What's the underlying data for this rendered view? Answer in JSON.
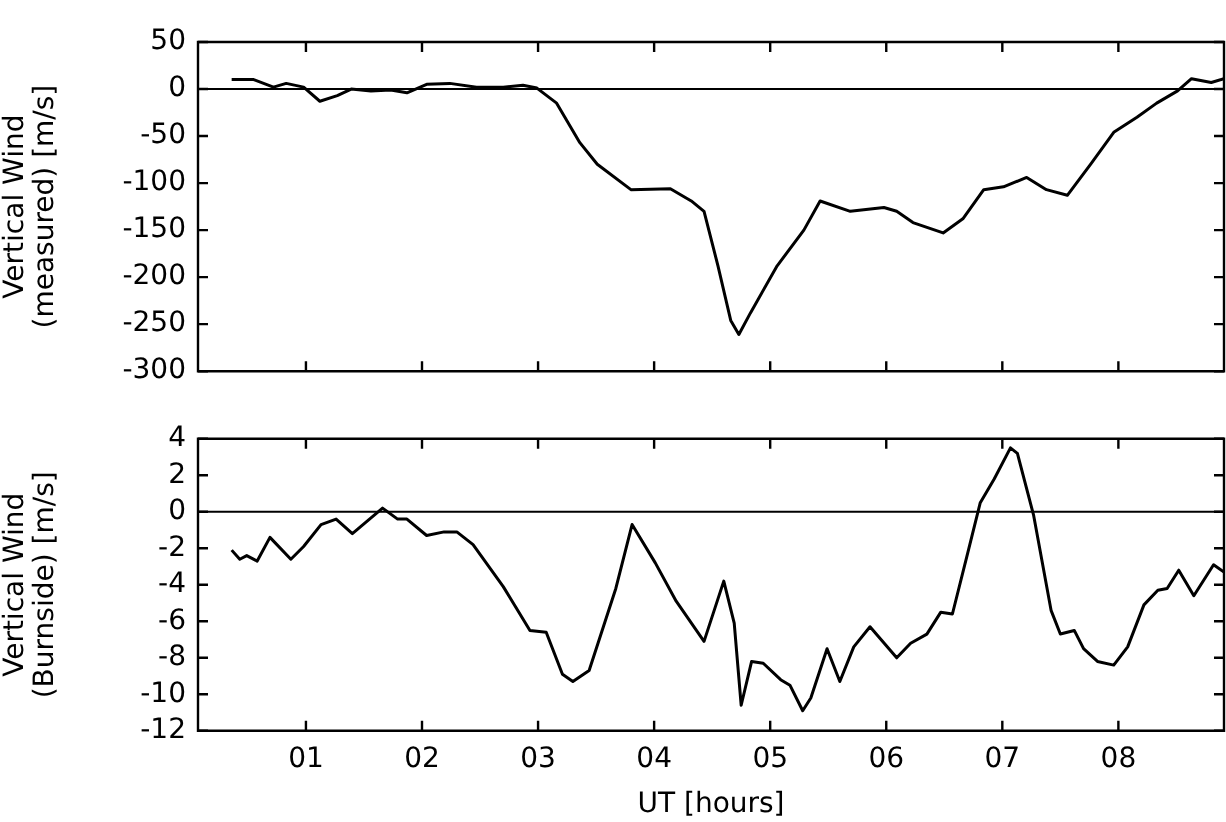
{
  "chart_data": [
    {
      "type": "line",
      "ylabel": "Vertical Wind\n(measured) [m/s]",
      "color": "#000000",
      "legend": false,
      "grid": false,
      "marker": "none",
      "line_style": "solid",
      "tick_labels": "y",
      "x": [
        0.36,
        0.55,
        0.72,
        0.83,
        0.98,
        1.12,
        1.27,
        1.39,
        1.56,
        1.73,
        1.87,
        2.04,
        2.24,
        2.47,
        2.7,
        2.87,
        2.99,
        3.16,
        3.36,
        3.51,
        3.8,
        4.14,
        4.32,
        4.43,
        4.55,
        4.66,
        4.73,
        4.83,
        5.06,
        5.29,
        5.43,
        5.69,
        5.98,
        6.09,
        6.23,
        6.49,
        6.66,
        6.84,
        7.01,
        7.21,
        7.38,
        7.56,
        7.76,
        7.96,
        8.16,
        8.33,
        8.51,
        8.63,
        8.8,
        8.91
      ],
      "values": [
        10,
        10,
        2,
        6,
        2,
        -13,
        -7,
        0,
        -2,
        -1,
        -4,
        5,
        6,
        2,
        2,
        4,
        1,
        -15,
        -57,
        -80,
        -107,
        -106,
        -119,
        -130,
        -188,
        -246,
        -261,
        -238,
        -188,
        -150,
        -119,
        -130,
        -126,
        -130,
        -142,
        -153,
        -138,
        -107,
        -104,
        -94,
        -107,
        -113,
        -80,
        -46,
        -30,
        -15,
        -2,
        11,
        7,
        11
      ],
      "xlim": [
        0.07,
        8.91
      ],
      "xticks": [
        {
          "value": 1,
          "label": null
        },
        {
          "value": 2,
          "label": null
        },
        {
          "value": 3,
          "label": null
        },
        {
          "value": 4,
          "label": null
        },
        {
          "value": 5,
          "label": null
        },
        {
          "value": 6,
          "label": null
        },
        {
          "value": 7,
          "label": null
        },
        {
          "value": 8,
          "label": null
        }
      ],
      "ylim": [
        -300,
        50
      ],
      "yticks": [
        -300,
        -250,
        -200,
        -150,
        -100,
        -50,
        0,
        50
      ],
      "ref_lines": [
        {
          "axis": "y",
          "value": 0
        }
      ]
    },
    {
      "type": "line",
      "ylabel": "Vertical Wind\n(Burnside) [m/s]",
      "xlabel": "UT [hours]",
      "color": "#000000",
      "legend": false,
      "grid": false,
      "marker": "none",
      "line_style": "solid",
      "x": [
        0.36,
        0.43,
        0.49,
        0.58,
        0.69,
        0.87,
        0.98,
        1.13,
        1.26,
        1.4,
        1.66,
        1.79,
        1.87,
        2.04,
        2.19,
        2.3,
        2.44,
        2.7,
        2.93,
        3.07,
        3.21,
        3.3,
        3.44,
        3.67,
        3.81,
        4.01,
        4.19,
        4.43,
        4.6,
        4.69,
        4.75,
        4.84,
        4.94,
        5.09,
        5.17,
        5.28,
        5.35,
        5.49,
        5.6,
        5.72,
        5.86,
        6.09,
        6.21,
        6.35,
        6.47,
        6.57,
        6.7,
        6.81,
        6.93,
        7.07,
        7.13,
        7.27,
        7.42,
        7.5,
        7.62,
        7.7,
        7.82,
        7.96,
        8.08,
        8.22,
        8.34,
        8.42,
        8.52,
        8.65,
        8.82,
        8.91
      ],
      "values": [
        -2.1,
        -2.6,
        -2.4,
        -2.7,
        -1.4,
        -2.6,
        -1.9,
        -0.7,
        -0.4,
        -1.2,
        0.2,
        -0.4,
        -0.4,
        -1.3,
        -1.1,
        -1.1,
        -1.8,
        -4.1,
        -6.5,
        -6.6,
        -8.9,
        -9.3,
        -8.7,
        -4.2,
        -0.7,
        -2.8,
        -4.9,
        -7.1,
        -3.8,
        -6.1,
        -10.6,
        -8.2,
        -8.3,
        -9.2,
        -9.5,
        -10.9,
        -10.2,
        -7.5,
        -9.3,
        -7.4,
        -6.3,
        -8,
        -7.2,
        -6.7,
        -5.5,
        -5.6,
        -2.3,
        0.5,
        1.8,
        3.5,
        3.2,
        -0.2,
        -5.4,
        -6.7,
        -6.5,
        -7.5,
        -8.2,
        -8.4,
        -7.4,
        -5.1,
        -4.3,
        -4.2,
        -3.2,
        -4.6,
        -2.9,
        -3.3
      ],
      "xlim": [
        0.07,
        8.91
      ],
      "xticks": [
        {
          "value": 1,
          "label": "01"
        },
        {
          "value": 2,
          "label": "02"
        },
        {
          "value": 3,
          "label": "03"
        },
        {
          "value": 4,
          "label": "04"
        },
        {
          "value": 5,
          "label": "05"
        },
        {
          "value": 6,
          "label": "06"
        },
        {
          "value": 7,
          "label": "07"
        },
        {
          "value": 8,
          "label": "08"
        }
      ],
      "ylim": [
        -12,
        4
      ],
      "yticks": [
        -12,
        -10,
        -8,
        -6,
        -4,
        -2,
        0,
        2,
        4
      ],
      "ref_lines": [
        {
          "axis": "y",
          "value": 0
        }
      ]
    }
  ]
}
